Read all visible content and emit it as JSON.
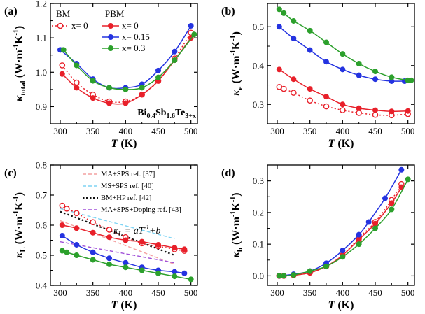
{
  "chart_data": [
    {
      "type": "line",
      "panel": "(a)",
      "xlabel": "T (K)",
      "ylabel": "κtotal (W·m⁻¹K⁻¹)",
      "xlim": [
        285,
        510
      ],
      "ylim": [
        0.85,
        1.2
      ],
      "xticks": [
        300,
        350,
        400,
        450,
        500
      ],
      "yticks": [
        0.9,
        1.0,
        1.1,
        1.2
      ],
      "legend_groups": [
        "BM",
        "PBM"
      ],
      "annotation": "Bi0.4Sb1.6Te3+x",
      "series": [
        {
          "name": "x= 0",
          "group": "BM",
          "color": "#e8202a",
          "style": "dotted-open",
          "x": [
            303,
            325,
            350,
            375,
            400,
            425,
            450,
            475,
            500
          ],
          "y": [
            1.02,
            0.97,
            0.935,
            0.915,
            0.915,
            0.935,
            0.975,
            1.04,
            1.115
          ]
        },
        {
          "name": "x= 0",
          "group": "PBM",
          "color": "#e8202a",
          "style": "solid",
          "x": [
            303,
            325,
            350,
            375,
            400,
            425,
            450,
            475,
            500
          ],
          "y": [
            0.995,
            0.955,
            0.925,
            0.91,
            0.91,
            0.935,
            0.975,
            1.035,
            1.1
          ]
        },
        {
          "name": "x= 0.15",
          "group": "PBM",
          "color": "#2433e0",
          "style": "solid",
          "x": [
            300,
            325,
            350,
            375,
            400,
            425,
            450,
            475,
            500
          ],
          "y": [
            1.065,
            1.025,
            0.98,
            0.955,
            0.955,
            0.965,
            1.005,
            1.06,
            1.135
          ]
        },
        {
          "name": "x= 0.3",
          "group": "PBM",
          "color": "#2ca02c",
          "style": "solid",
          "x": [
            305,
            325,
            350,
            375,
            400,
            425,
            450,
            475,
            505
          ],
          "y": [
            1.065,
            1.02,
            0.975,
            0.955,
            0.95,
            0.955,
            0.985,
            1.035,
            1.11
          ]
        }
      ]
    },
    {
      "type": "line",
      "panel": "(b)",
      "xlabel": "T (K)",
      "ylabel": "κe (W·m⁻¹K⁻¹)",
      "xlim": [
        285,
        510
      ],
      "ylim": [
        0.25,
        0.56
      ],
      "xticks": [
        300,
        350,
        400,
        450,
        500
      ],
      "yticks": [
        0.3,
        0.4,
        0.5
      ],
      "series": [
        {
          "name": "BM x= 0",
          "color": "#e8202a",
          "style": "dotted-open",
          "x": [
            303,
            310,
            325,
            350,
            375,
            400,
            425,
            450,
            475,
            500
          ],
          "y": [
            0.345,
            0.34,
            0.33,
            0.31,
            0.295,
            0.285,
            0.278,
            0.273,
            0.272,
            0.275
          ]
        },
        {
          "name": "PBM x= 0",
          "color": "#e8202a",
          "style": "solid",
          "x": [
            303,
            325,
            350,
            375,
            400,
            425,
            450,
            475,
            500
          ],
          "y": [
            0.39,
            0.365,
            0.34,
            0.32,
            0.3,
            0.29,
            0.285,
            0.282,
            0.283
          ]
        },
        {
          "name": "PBM x= 0.15",
          "color": "#2433e0",
          "style": "solid",
          "x": [
            303,
            325,
            350,
            375,
            400,
            425,
            450,
            475,
            495
          ],
          "y": [
            0.5,
            0.47,
            0.44,
            0.41,
            0.39,
            0.375,
            0.365,
            0.36,
            0.36
          ]
        },
        {
          "name": "PBM x= 0.3",
          "color": "#2ca02c",
          "style": "solid",
          "x": [
            303,
            310,
            325,
            350,
            375,
            400,
            425,
            450,
            475,
            500,
            505
          ],
          "y": [
            0.545,
            0.535,
            0.515,
            0.49,
            0.46,
            0.43,
            0.405,
            0.385,
            0.37,
            0.362,
            0.362
          ]
        }
      ]
    },
    {
      "type": "line",
      "panel": "(c)",
      "xlabel": "T (K)",
      "ylabel": "κL (W·m⁻¹K⁻¹)",
      "xlim": [
        285,
        510
      ],
      "ylim": [
        0.4,
        0.8
      ],
      "xticks": [
        300,
        350,
        400,
        450,
        500
      ],
      "yticks": [
        0.4,
        0.5,
        0.6,
        0.7,
        0.8
      ],
      "fit_annotation": "κL = aT⁻¹+b",
      "references": [
        {
          "name": "MA+SPS ref. [37]",
          "color": "#f4a0a0",
          "x": [
            300,
            475
          ],
          "y": [
            0.615,
            0.47
          ]
        },
        {
          "name": "MS+SPS ref. [40]",
          "color": "#7fd4f4",
          "x": [
            300,
            475
          ],
          "y": [
            0.655,
            0.555
          ]
        },
        {
          "name": "BM+HP ref. [42]",
          "color": "#111111",
          "x": [
            300,
            475
          ],
          "y": [
            0.645,
            0.5
          ]
        },
        {
          "name": "MA+SPS+Doping ref. [43]",
          "color": "#a050d8",
          "x": [
            300,
            475
          ],
          "y": [
            0.545,
            0.475
          ]
        }
      ],
      "series": [
        {
          "name": "BM x= 0",
          "color": "#e8202a",
          "style": "dotted-open",
          "x": [
            303,
            310,
            325,
            350,
            375,
            400,
            425,
            450,
            475,
            490
          ],
          "y": [
            0.665,
            0.655,
            0.64,
            0.61,
            0.585,
            0.56,
            0.54,
            0.53,
            0.52,
            0.515
          ]
        },
        {
          "name": "PBM x= 0",
          "color": "#e8202a",
          "style": "solid",
          "x": [
            303,
            325,
            350,
            375,
            400,
            425,
            450,
            475,
            490
          ],
          "y": [
            0.6,
            0.59,
            0.575,
            0.56,
            0.55,
            0.545,
            0.535,
            0.525,
            0.52
          ]
        },
        {
          "name": "PBM x= 0.15",
          "color": "#2433e0",
          "style": "solid",
          "x": [
            303,
            325,
            350,
            375,
            400,
            425,
            450,
            475,
            490
          ],
          "y": [
            0.565,
            0.535,
            0.51,
            0.49,
            0.475,
            0.46,
            0.45,
            0.445,
            0.44
          ]
        },
        {
          "name": "PBM x= 0.3",
          "color": "#2ca02c",
          "style": "solid",
          "x": [
            303,
            310,
            325,
            350,
            375,
            400,
            425,
            450,
            475,
            500
          ],
          "y": [
            0.515,
            0.51,
            0.5,
            0.485,
            0.47,
            0.46,
            0.45,
            0.44,
            0.43,
            0.42
          ]
        }
      ]
    },
    {
      "type": "line",
      "panel": "(d)",
      "xlabel": "T (K)",
      "ylabel": "κb (W·m⁻¹K⁻¹)",
      "xlim": [
        285,
        510
      ],
      "ylim": [
        -0.03,
        0.35
      ],
      "xticks": [
        300,
        350,
        400,
        450,
        500
      ],
      "yticks": [
        0.0,
        0.1,
        0.2,
        0.3
      ],
      "series": [
        {
          "name": "BM x= 0",
          "color": "#e8202a",
          "style": "dotted-open",
          "x": [
            303,
            310,
            325,
            350,
            375,
            400,
            425,
            450,
            475,
            490
          ],
          "y": [
            0.0,
            0.0,
            0.002,
            0.01,
            0.03,
            0.065,
            0.12,
            0.17,
            0.24,
            0.29
          ]
        },
        {
          "name": "PBM x= 0",
          "color": "#e8202a",
          "style": "solid",
          "x": [
            303,
            325,
            350,
            375,
            400,
            425,
            450,
            475,
            490
          ],
          "y": [
            0.0,
            0.002,
            0.01,
            0.03,
            0.065,
            0.115,
            0.165,
            0.23,
            0.28
          ]
        },
        {
          "name": "PBM x= 0.15",
          "color": "#2433e0",
          "style": "solid",
          "x": [
            303,
            325,
            350,
            375,
            400,
            425,
            440,
            465,
            490
          ],
          "y": [
            0.0,
            0.005,
            0.015,
            0.04,
            0.08,
            0.13,
            0.17,
            0.245,
            0.335
          ]
        },
        {
          "name": "PBM x= 0.3",
          "color": "#2ca02c",
          "style": "solid",
          "x": [
            303,
            310,
            325,
            350,
            375,
            400,
            425,
            450,
            475,
            500
          ],
          "y": [
            0.0,
            0.0,
            0.003,
            0.015,
            0.03,
            0.06,
            0.1,
            0.15,
            0.21,
            0.305
          ]
        }
      ]
    }
  ]
}
